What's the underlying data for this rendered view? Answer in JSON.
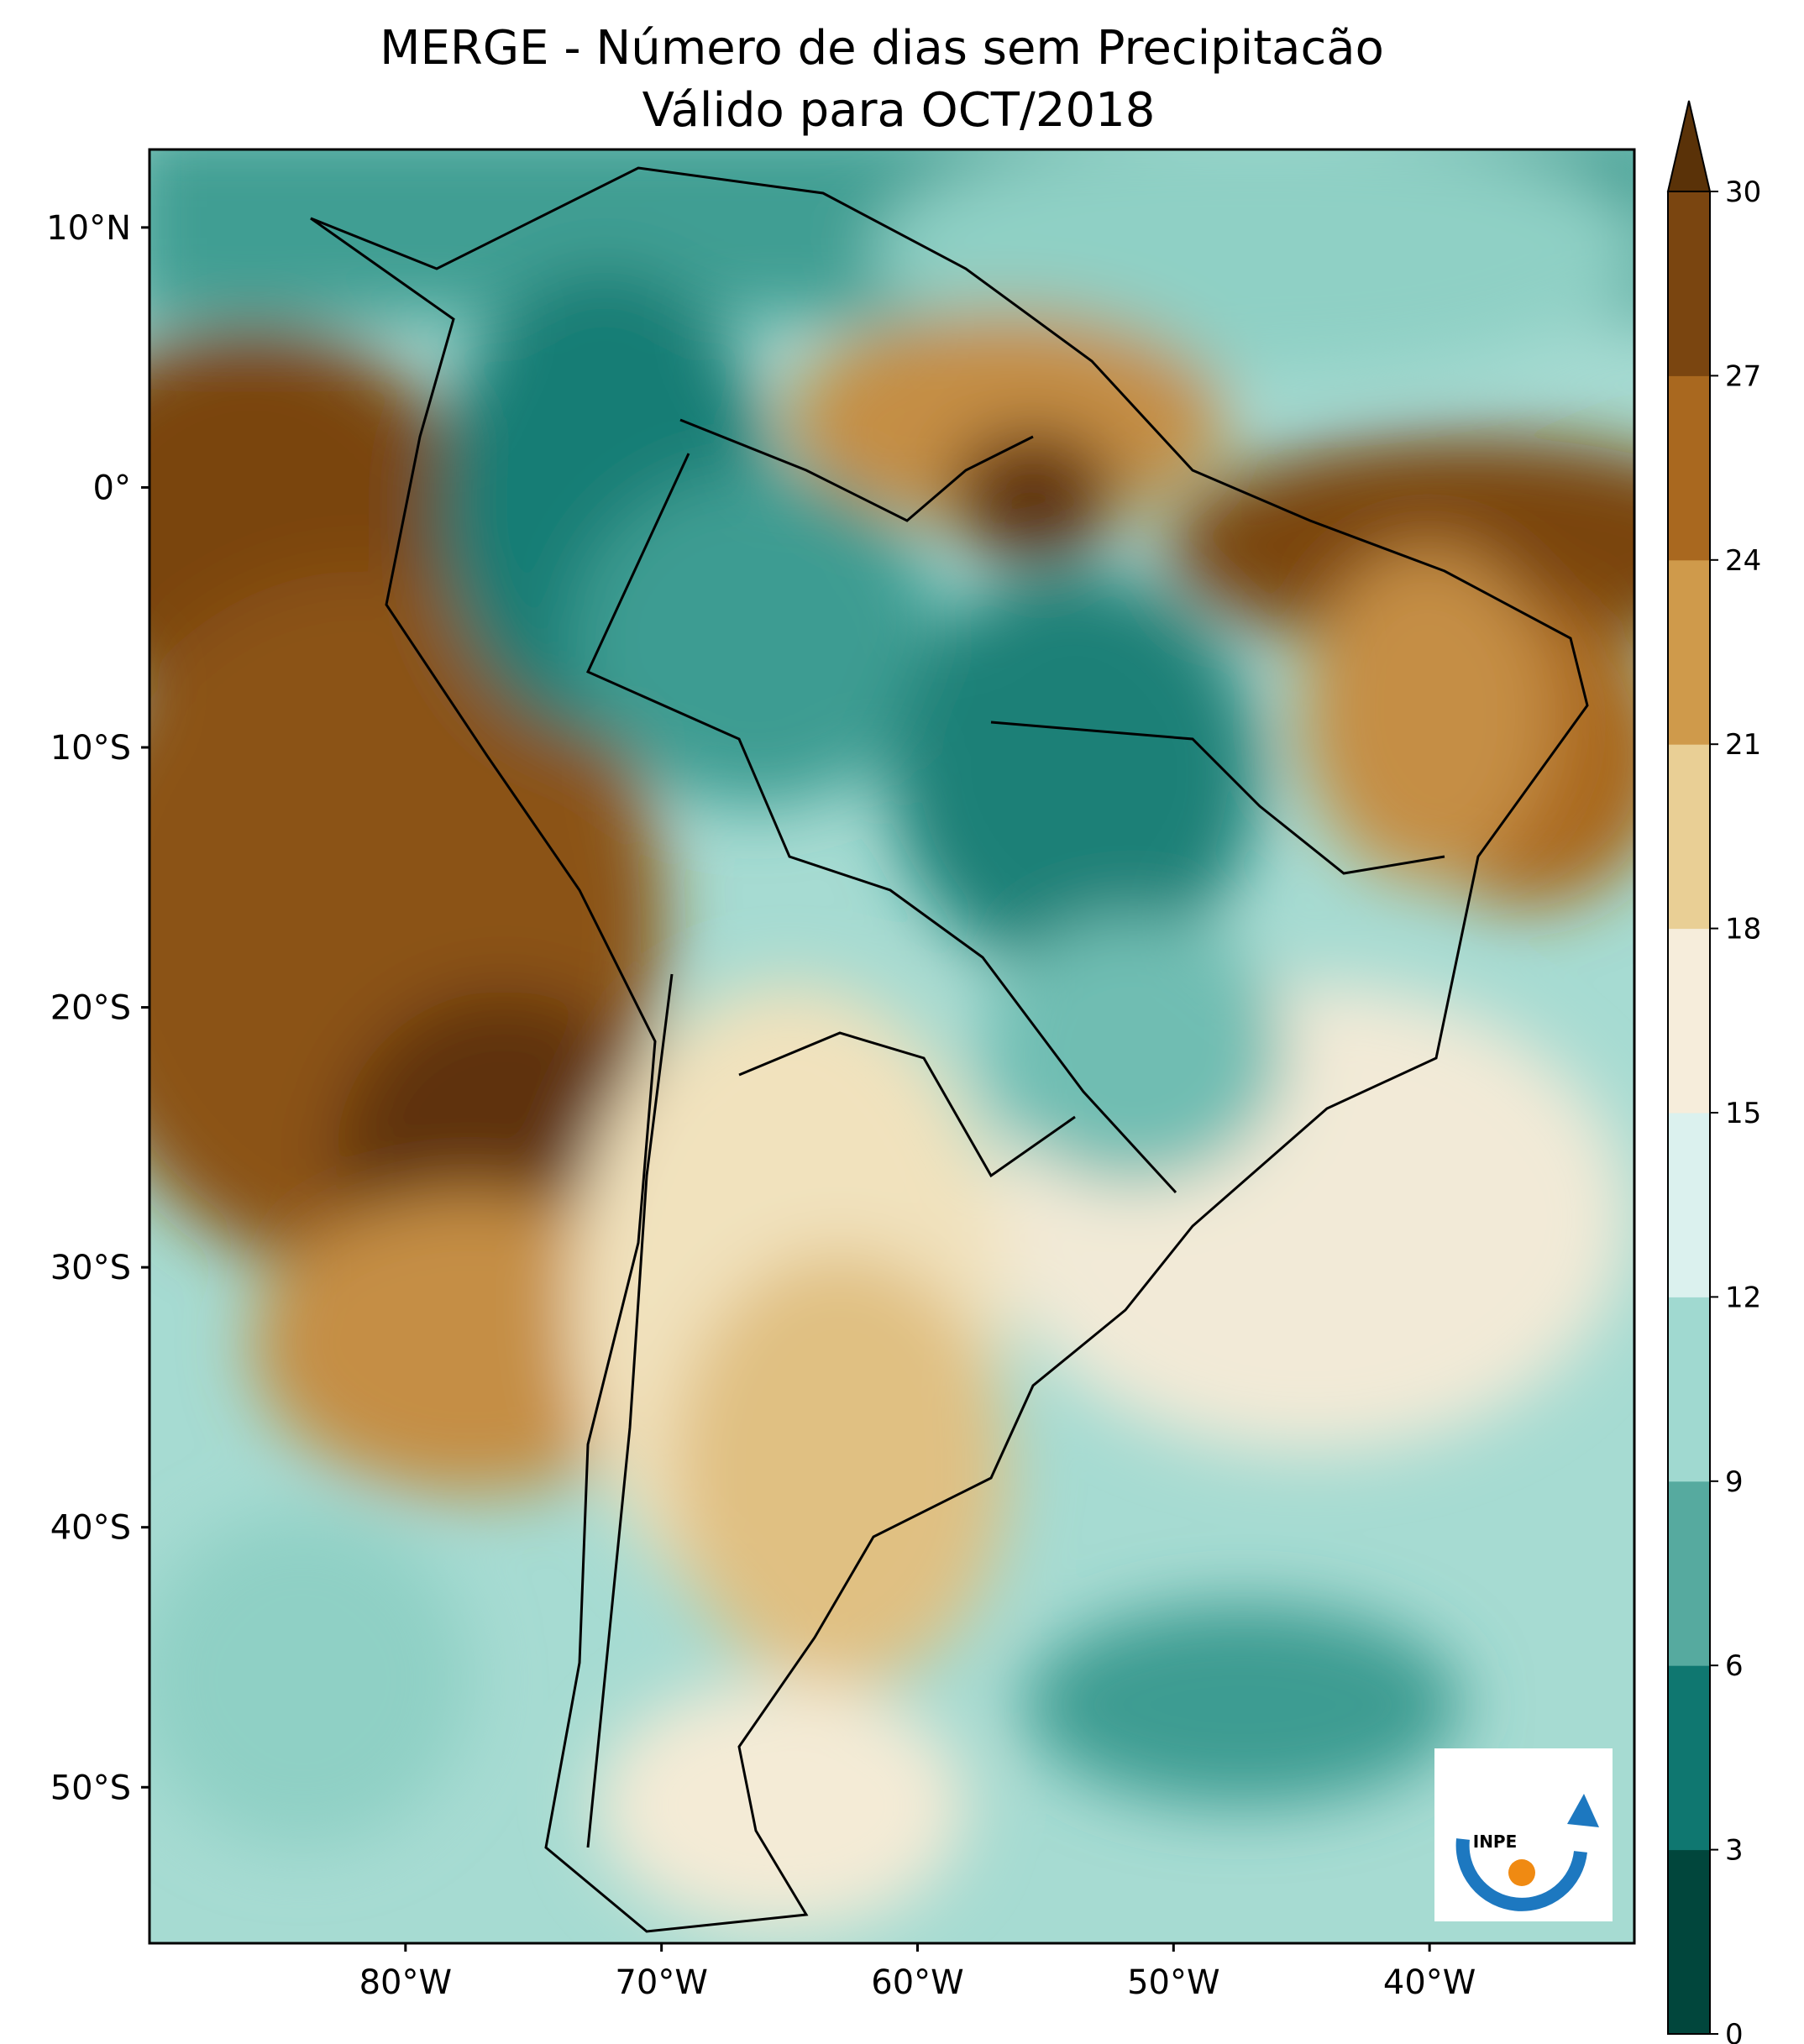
{
  "title": {
    "line1": "MERGE - Número de dias sem Precipitacão",
    "line2": "Válido para OCT/2018"
  },
  "axes": {
    "lat_ticks": [
      "10°N",
      "0°",
      "10°S",
      "20°S",
      "30°S",
      "40°S",
      "50°S"
    ],
    "lon_ticks": [
      "80°W",
      "70°W",
      "60°W",
      "50°W",
      "40°W"
    ],
    "lat_values": [
      10,
      0,
      -10,
      -20,
      -30,
      -40,
      -50
    ],
    "lon_values": [
      -80,
      -70,
      -60,
      -50,
      -40
    ],
    "lat_range": [
      -56,
      13
    ],
    "lon_range": [
      -90,
      -32
    ]
  },
  "colorbar": {
    "ticks": [
      "0",
      "3",
      "6",
      "9",
      "12",
      "15",
      "18",
      "21",
      "24",
      "27",
      "30"
    ],
    "extend": "max",
    "colors": [
      "#01463c",
      "#0f7770",
      "#56aa9f",
      "#a0d9d0",
      "#dbf1ee",
      "#f6eddb",
      "#e9cf95",
      "#cf9a4b",
      "#a9681f",
      "#7a4510",
      "#5a3208"
    ]
  },
  "regions": {
    "colors": {
      "wet_dark": "#0c6f66",
      "wet": "#3c9c92",
      "wet_light": "#9ad3cb",
      "neutral_light": "#dff2ef",
      "dry_light": "#f4ebd6",
      "dry": "#e0c082",
      "dry_mid": "#c58e45",
      "dry_dark": "#8e5318",
      "dry_darkest": "#6b3a0c"
    }
  },
  "logo": {
    "text": "INPE",
    "colors": {
      "arc": "#1d78c0",
      "dot": "#f08a12"
    }
  }
}
